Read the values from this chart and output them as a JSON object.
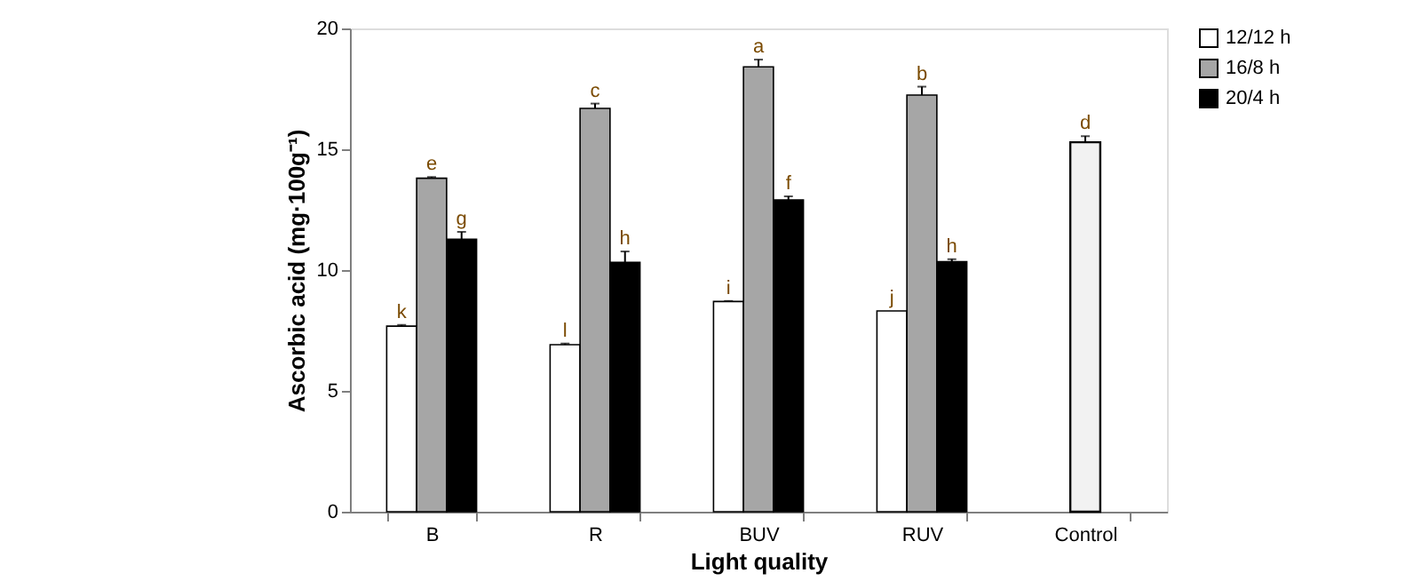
{
  "chart_data": {
    "type": "bar",
    "xlabel": "Light quality",
    "ylabel": "Ascorbic acid (mg·100g⁻¹)",
    "categories": [
      "B",
      "R",
      "BUV",
      "RUV",
      "Control"
    ],
    "series": [
      {
        "name": "12/12 h",
        "color": "#ffffff",
        "values": [
          7.68,
          6.91,
          8.7,
          8.31,
          null
        ],
        "errors": [
          0.05,
          0.05,
          0.02,
          null,
          null
        ],
        "value_labels": [
          "k",
          "l",
          "i",
          "j",
          null
        ]
      },
      {
        "name": "16/8 h",
        "color": "#a6a6a6",
        "values": [
          13.8,
          16.69,
          18.41,
          17.24,
          null
        ],
        "errors": [
          0.05,
          0.2,
          0.3,
          0.35,
          null
        ],
        "value_labels": [
          "e",
          "c",
          "a",
          "b",
          null
        ]
      },
      {
        "name": "20/4 h",
        "color": "#000000",
        "values": [
          11.28,
          10.32,
          12.9,
          10.35,
          null
        ],
        "errors": [
          0.3,
          0.45,
          0.15,
          0.1,
          null
        ],
        "value_labels": [
          "g",
          "h",
          "f",
          "h",
          null
        ]
      },
      {
        "color": "#f2f2f2",
        "values": [
          null,
          null,
          null,
          null,
          15.29
        ],
        "errors": [
          null,
          null,
          null,
          null,
          0.25
        ],
        "value_labels": [
          null,
          null,
          null,
          null,
          "d"
        ]
      }
    ],
    "ylim": [
      0,
      20
    ],
    "yticks": [
      0,
      5,
      10,
      15,
      20
    ],
    "grid": false,
    "legend": "right"
  }
}
